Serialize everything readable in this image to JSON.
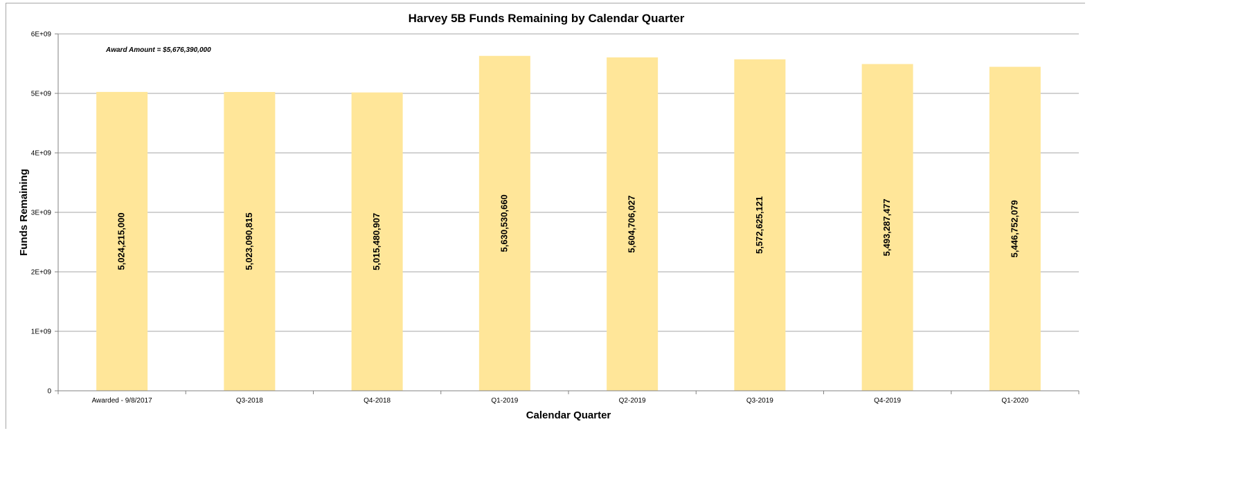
{
  "chart_data": {
    "type": "bar",
    "title": "Harvey 5B Funds Remaining by Calendar Quarter",
    "xlabel": "Calendar Quarter",
    "ylabel": "Funds Remaining",
    "annotation": "Award Amount = $5,676,390,000",
    "ylim": [
      0,
      6000000000
    ],
    "yticks": [
      0,
      1000000000,
      2000000000,
      3000000000,
      4000000000,
      5000000000,
      6000000000
    ],
    "ytick_labels": [
      "0",
      "1E+09",
      "2E+09",
      "3E+09",
      "4E+09",
      "5E+09",
      "6E+09"
    ],
    "categories": [
      "Awarded - 9/8/2017",
      "Q3-2018",
      "Q4-2018",
      "Q1-2019",
      "Q2-2019",
      "Q3-2019",
      "Q4-2019",
      "Q1-2020"
    ],
    "values": [
      5024215000,
      5023090815,
      5015480907,
      5630530660,
      5604706027,
      5572625121,
      5493287477,
      5446752079
    ],
    "data_labels": [
      "5,024,215,000",
      "5,023,090,815",
      "5,015,480,907",
      "5,630,530,660",
      "5,604,706,027",
      "5,572,625,121",
      "5,493,287,477",
      "5,446,752,079"
    ],
    "grid": true,
    "legend": "none",
    "bar_color": "#ffe699",
    "grid_color": "#a6a6a6"
  }
}
